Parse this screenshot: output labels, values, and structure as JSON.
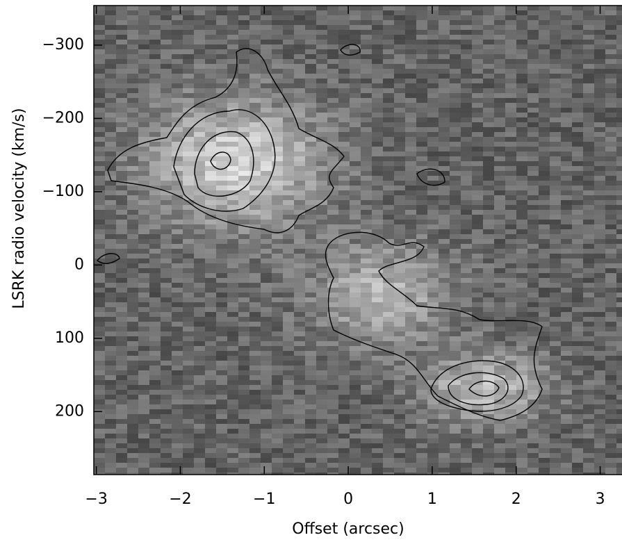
{
  "chart_data": {
    "type": "image",
    "xlabel": "Offset (arcsec)",
    "ylabel": "LSRK radio velocity  (km/s)",
    "xlim": [
      -3.03,
      3.26
    ],
    "ylim": [
      -354,
      286
    ],
    "y_inverted": true,
    "colormap": "gray",
    "xticks": [
      {
        "value": -3,
        "label": "−3"
      },
      {
        "value": -2,
        "label": "−2"
      },
      {
        "value": -1,
        "label": "−1"
      },
      0,
      1,
      2,
      3
    ],
    "yticks": [
      {
        "value": -300,
        "label": "−300"
      },
      {
        "value": -200,
        "label": "−200"
      },
      {
        "value": -100,
        "label": "−100"
      },
      0,
      100,
      200
    ]
  }
}
